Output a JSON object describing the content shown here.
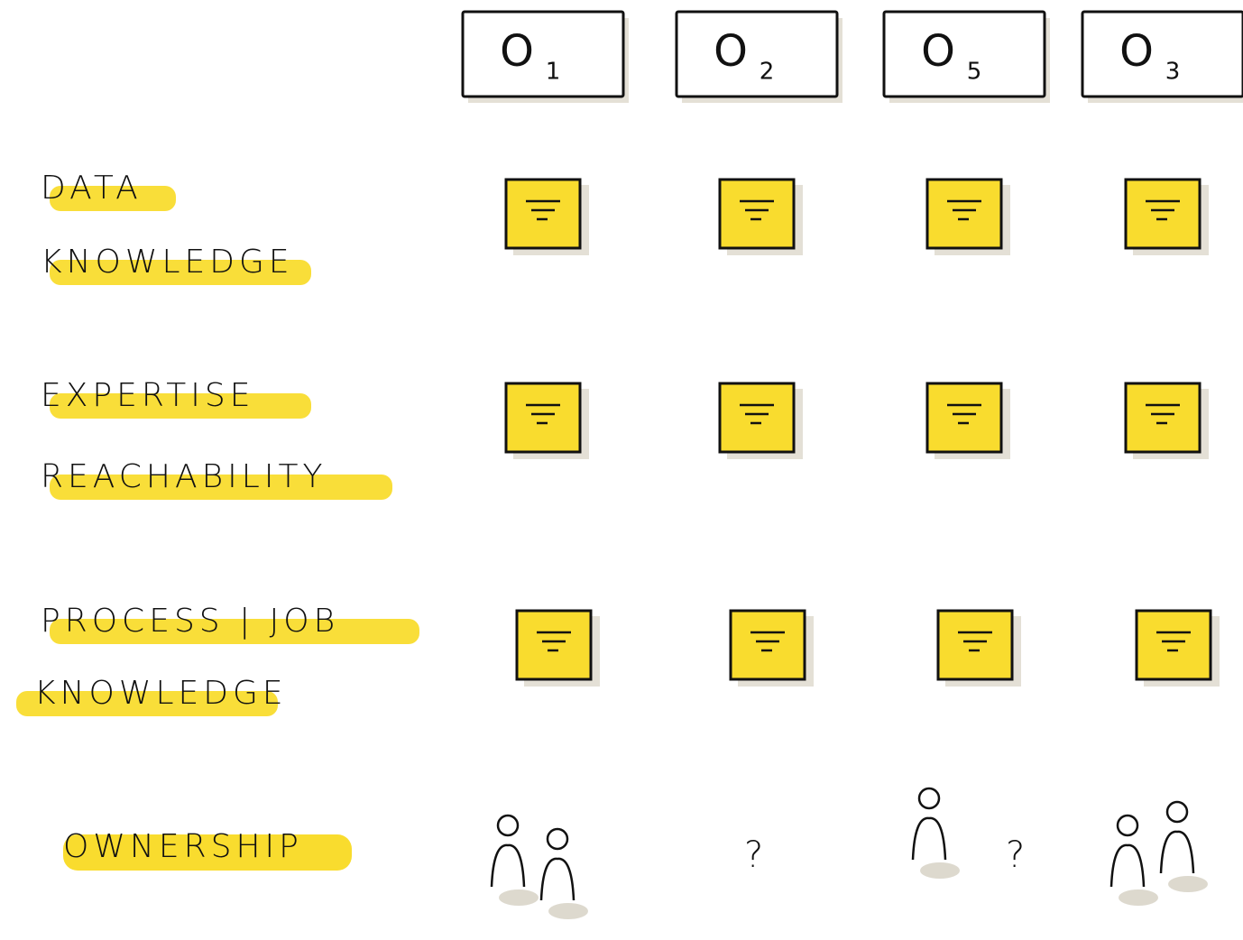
{
  "columns": [
    {
      "letter": "O",
      "index": "1"
    },
    {
      "letter": "O",
      "index": "2"
    },
    {
      "letter": "O",
      "index": "5"
    },
    {
      "letter": "O",
      "index": "3"
    }
  ],
  "rows": [
    {
      "label": [
        "DATA",
        "KNOWLEDGE"
      ]
    },
    {
      "label": [
        "EXPERTISE",
        "REACHABILITY"
      ]
    },
    {
      "label": [
        "PROCESS | JOB",
        "KNOWLEDGE"
      ]
    }
  ],
  "ownership": {
    "label": "OWNERSHIP",
    "cells": [
      {
        "people": 2
      },
      {
        "note": "?"
      },
      {
        "people": 1,
        "note": "?"
      },
      {
        "people": 2
      }
    ]
  }
}
